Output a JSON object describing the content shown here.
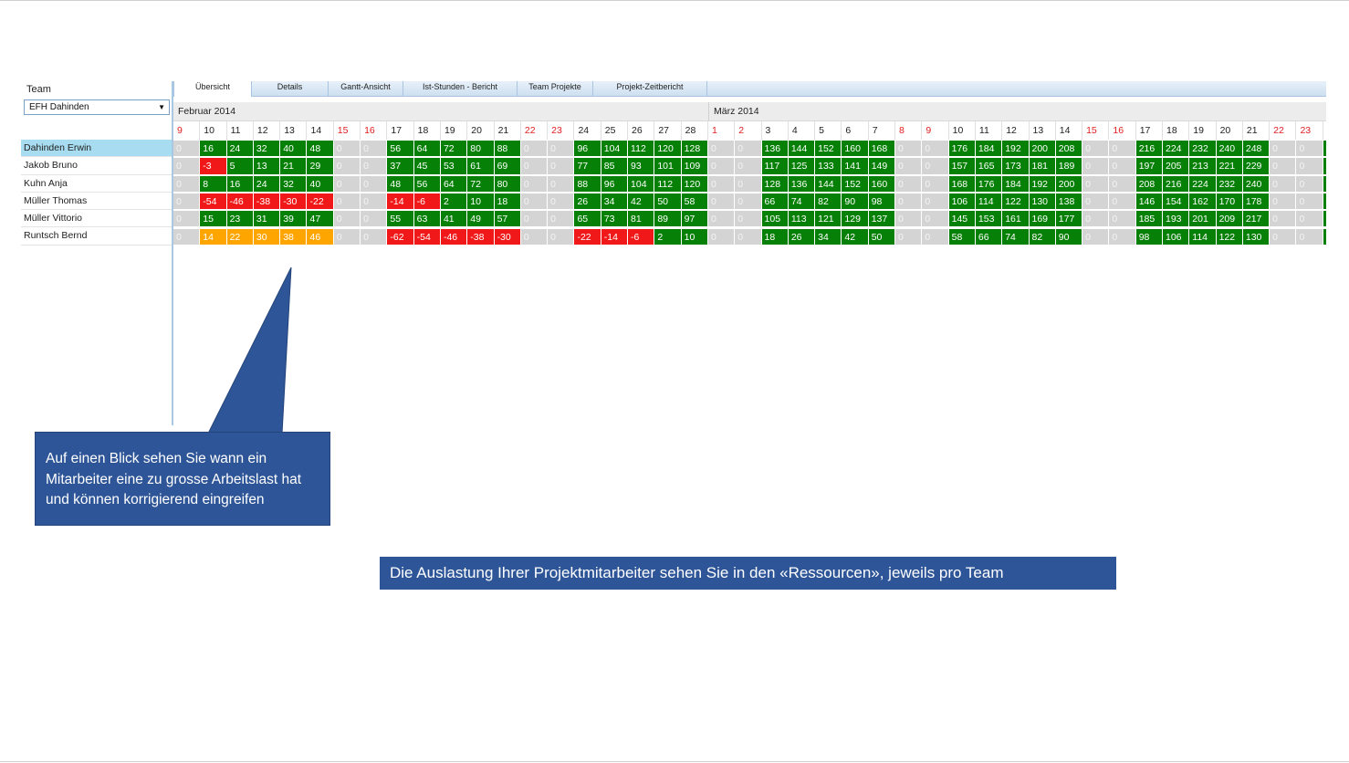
{
  "team": {
    "label": "Team",
    "selected": "EFH Dahinden",
    "dropdown_icon": "▼"
  },
  "tabs": [
    "Übersicht",
    "Details",
    "Gantt-Ansicht",
    "Ist-Stunden - Bericht",
    "Team Projekte",
    "Projekt-Zeitbericht"
  ],
  "active_tab": "Übersicht",
  "months": [
    "Februar 2014",
    "März 2014"
  ],
  "days": [
    {
      "d": "9",
      "w": true
    },
    {
      "d": "10",
      "w": false
    },
    {
      "d": "11",
      "w": false
    },
    {
      "d": "12",
      "w": false
    },
    {
      "d": "13",
      "w": false
    },
    {
      "d": "14",
      "w": false
    },
    {
      "d": "15",
      "w": true
    },
    {
      "d": "16",
      "w": true
    },
    {
      "d": "17",
      "w": false
    },
    {
      "d": "18",
      "w": false
    },
    {
      "d": "19",
      "w": false
    },
    {
      "d": "20",
      "w": false
    },
    {
      "d": "21",
      "w": false
    },
    {
      "d": "22",
      "w": true
    },
    {
      "d": "23",
      "w": true
    },
    {
      "d": "24",
      "w": false
    },
    {
      "d": "25",
      "w": false
    },
    {
      "d": "26",
      "w": false
    },
    {
      "d": "27",
      "w": false
    },
    {
      "d": "28",
      "w": false
    },
    {
      "d": "1",
      "w": true
    },
    {
      "d": "2",
      "w": true
    },
    {
      "d": "3",
      "w": false
    },
    {
      "d": "4",
      "w": false
    },
    {
      "d": "5",
      "w": false
    },
    {
      "d": "6",
      "w": false
    },
    {
      "d": "7",
      "w": false
    },
    {
      "d": "8",
      "w": true
    },
    {
      "d": "9",
      "w": true
    },
    {
      "d": "10",
      "w": false
    },
    {
      "d": "11",
      "w": false
    },
    {
      "d": "12",
      "w": false
    },
    {
      "d": "13",
      "w": false
    },
    {
      "d": "14",
      "w": false
    },
    {
      "d": "15",
      "w": true
    },
    {
      "d": "16",
      "w": true
    },
    {
      "d": "17",
      "w": false
    },
    {
      "d": "18",
      "w": false
    },
    {
      "d": "19",
      "w": false
    },
    {
      "d": "20",
      "w": false
    },
    {
      "d": "21",
      "w": false
    },
    {
      "d": "22",
      "w": true
    },
    {
      "d": "23",
      "w": true
    },
    {
      "d": "",
      "w": false
    }
  ],
  "employees": [
    {
      "name": "Dahinden Erwin",
      "selected": true,
      "values": [
        "0",
        "16",
        "24",
        "32",
        "40",
        "48",
        "0",
        "0",
        "56",
        "64",
        "72",
        "80",
        "88",
        "0",
        "0",
        "96",
        "104",
        "112",
        "120",
        "128",
        "0",
        "0",
        "136",
        "144",
        "152",
        "160",
        "168",
        "0",
        "0",
        "176",
        "184",
        "192",
        "200",
        "208",
        "0",
        "0",
        "216",
        "224",
        "232",
        "240",
        "248",
        "0",
        "0",
        ""
      ],
      "status": [
        "z",
        "g",
        "g",
        "g",
        "g",
        "g",
        "z",
        "z",
        "g",
        "g",
        "g",
        "g",
        "g",
        "z",
        "z",
        "g",
        "g",
        "g",
        "g",
        "g",
        "z",
        "z",
        "g",
        "g",
        "g",
        "g",
        "g",
        "z",
        "z",
        "g",
        "g",
        "g",
        "g",
        "g",
        "z",
        "z",
        "g",
        "g",
        "g",
        "g",
        "g",
        "z",
        "z",
        "g"
      ]
    },
    {
      "name": "Jakob Bruno",
      "selected": false,
      "values": [
        "0",
        "-3",
        "5",
        "13",
        "21",
        "29",
        "0",
        "0",
        "37",
        "45",
        "53",
        "61",
        "69",
        "0",
        "0",
        "77",
        "85",
        "93",
        "101",
        "109",
        "0",
        "0",
        "117",
        "125",
        "133",
        "141",
        "149",
        "0",
        "0",
        "157",
        "165",
        "173",
        "181",
        "189",
        "0",
        "0",
        "197",
        "205",
        "213",
        "221",
        "229",
        "0",
        "0",
        ""
      ],
      "status": [
        "z",
        "r",
        "g",
        "g",
        "g",
        "g",
        "z",
        "z",
        "g",
        "g",
        "g",
        "g",
        "g",
        "z",
        "z",
        "g",
        "g",
        "g",
        "g",
        "g",
        "z",
        "z",
        "g",
        "g",
        "g",
        "g",
        "g",
        "z",
        "z",
        "g",
        "g",
        "g",
        "g",
        "g",
        "z",
        "z",
        "g",
        "g",
        "g",
        "g",
        "g",
        "z",
        "z",
        "g"
      ]
    },
    {
      "name": "Kuhn Anja",
      "selected": false,
      "values": [
        "0",
        "8",
        "16",
        "24",
        "32",
        "40",
        "0",
        "0",
        "48",
        "56",
        "64",
        "72",
        "80",
        "0",
        "0",
        "88",
        "96",
        "104",
        "112",
        "120",
        "0",
        "0",
        "128",
        "136",
        "144",
        "152",
        "160",
        "0",
        "0",
        "168",
        "176",
        "184",
        "192",
        "200",
        "0",
        "0",
        "208",
        "216",
        "224",
        "232",
        "240",
        "0",
        "0",
        ""
      ],
      "status": [
        "z",
        "g",
        "g",
        "g",
        "g",
        "g",
        "z",
        "z",
        "g",
        "g",
        "g",
        "g",
        "g",
        "z",
        "z",
        "g",
        "g",
        "g",
        "g",
        "g",
        "z",
        "z",
        "g",
        "g",
        "g",
        "g",
        "g",
        "z",
        "z",
        "g",
        "g",
        "g",
        "g",
        "g",
        "z",
        "z",
        "g",
        "g",
        "g",
        "g",
        "g",
        "z",
        "z",
        "g"
      ]
    },
    {
      "name": "Müller Thomas",
      "selected": false,
      "values": [
        "0",
        "-54",
        "-46",
        "-38",
        "-30",
        "-22",
        "0",
        "0",
        "-14",
        "-6",
        "2",
        "10",
        "18",
        "0",
        "0",
        "26",
        "34",
        "42",
        "50",
        "58",
        "0",
        "0",
        "66",
        "74",
        "82",
        "90",
        "98",
        "0",
        "0",
        "106",
        "114",
        "122",
        "130",
        "138",
        "0",
        "0",
        "146",
        "154",
        "162",
        "170",
        "178",
        "0",
        "0",
        ""
      ],
      "status": [
        "z",
        "r",
        "r",
        "r",
        "r",
        "r",
        "z",
        "z",
        "r",
        "r",
        "g",
        "g",
        "g",
        "z",
        "z",
        "g",
        "g",
        "g",
        "g",
        "g",
        "z",
        "z",
        "g",
        "g",
        "g",
        "g",
        "g",
        "z",
        "z",
        "g",
        "g",
        "g",
        "g",
        "g",
        "z",
        "z",
        "g",
        "g",
        "g",
        "g",
        "g",
        "z",
        "z",
        "g"
      ]
    },
    {
      "name": "Müller Vittorio",
      "selected": false,
      "values": [
        "0",
        "15",
        "23",
        "31",
        "39",
        "47",
        "0",
        "0",
        "55",
        "63",
        "41",
        "49",
        "57",
        "0",
        "0",
        "65",
        "73",
        "81",
        "89",
        "97",
        "0",
        "0",
        "105",
        "113",
        "121",
        "129",
        "137",
        "0",
        "0",
        "145",
        "153",
        "161",
        "169",
        "177",
        "0",
        "0",
        "185",
        "193",
        "201",
        "209",
        "217",
        "0",
        "0",
        ""
      ],
      "status": [
        "z",
        "g",
        "g",
        "g",
        "g",
        "g",
        "z",
        "z",
        "g",
        "g",
        "g",
        "g",
        "g",
        "z",
        "z",
        "g",
        "g",
        "g",
        "g",
        "g",
        "z",
        "z",
        "g",
        "g",
        "g",
        "g",
        "g",
        "z",
        "z",
        "g",
        "g",
        "g",
        "g",
        "g",
        "z",
        "z",
        "g",
        "g",
        "g",
        "g",
        "g",
        "z",
        "z",
        "g"
      ]
    },
    {
      "name": "Runtsch Bernd",
      "selected": false,
      "values": [
        "0",
        "14",
        "22",
        "30",
        "38",
        "46",
        "0",
        "0",
        "-62",
        "-54",
        "-46",
        "-38",
        "-30",
        "0",
        "0",
        "-22",
        "-14",
        "-6",
        "2",
        "10",
        "0",
        "0",
        "18",
        "26",
        "34",
        "42",
        "50",
        "0",
        "0",
        "58",
        "66",
        "74",
        "82",
        "90",
        "0",
        "0",
        "98",
        "106",
        "114",
        "122",
        "130",
        "0",
        "0",
        ""
      ],
      "status": [
        "z",
        "o",
        "o",
        "o",
        "o",
        "o",
        "z",
        "z",
        "r",
        "r",
        "r",
        "r",
        "r",
        "z",
        "z",
        "r",
        "r",
        "r",
        "g",
        "g",
        "z",
        "z",
        "g",
        "g",
        "g",
        "g",
        "g",
        "z",
        "z",
        "g",
        "g",
        "g",
        "g",
        "g",
        "z",
        "z",
        "g",
        "g",
        "g",
        "g",
        "g",
        "z",
        "z",
        "g"
      ]
    }
  ],
  "colors": {
    "ok": "#068006",
    "overload": "#f01818",
    "warning": "#ffa500",
    "weekend": "#d4d4d4",
    "callout": "#2e5597"
  },
  "callout_text": "Auf einen Blick sehen Sie wann ein Mitarbeiter eine zu grosse Arbeitslast hat und können korrigierend eingreifen",
  "banner_text": "Die Auslastung Ihrer Projektmitarbeiter sehen Sie in den «Ressourcen», jeweils pro Team"
}
